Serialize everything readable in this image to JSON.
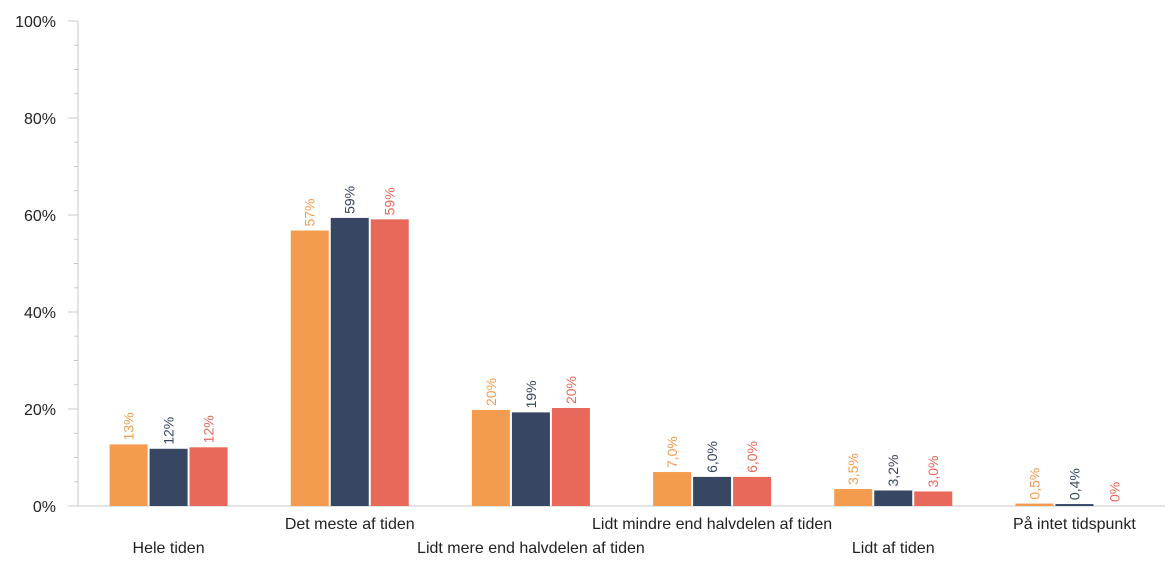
{
  "chart_data": {
    "type": "bar",
    "title": "",
    "xlabel": "",
    "ylabel": "",
    "ylim": [
      0,
      100
    ],
    "y_tick_values": [
      0,
      20,
      40,
      60,
      80,
      100
    ],
    "y_tick_labels": [
      "0%",
      "20%",
      "40%",
      "60%",
      "80%",
      "100%"
    ],
    "grid": false,
    "legend": "none",
    "categories": [
      "Hele tiden",
      "Det meste af tiden",
      "Lidt mere end halvdelen af tiden",
      "Lidt mindre end halvdelen af tiden",
      "Lidt af tiden",
      "På intet tidspunkt"
    ],
    "category_label_row": [
      "lower",
      "upper",
      "lower",
      "upper",
      "lower",
      "upper"
    ],
    "series": [
      {
        "color": "#F39C4F",
        "values": [
          12.7,
          56.8,
          19.8,
          7.0,
          3.5,
          0.5
        ],
        "labels": [
          "13%",
          "57%",
          "20%",
          "7,0%",
          "3,5%",
          "0,5%"
        ]
      },
      {
        "color": "#374763",
        "values": [
          11.8,
          59.4,
          19.3,
          6.0,
          3.2,
          0.4
        ],
        "labels": [
          "12%",
          "59%",
          "19%",
          "6,0%",
          "3,2%",
          "0,4%"
        ]
      },
      {
        "color": "#E8685A",
        "values": [
          12.1,
          59.1,
          20.2,
          6.0,
          3.0,
          0.0
        ],
        "labels": [
          "12%",
          "59%",
          "20%",
          "6,0%",
          "3,0%",
          "0%"
        ]
      }
    ]
  }
}
